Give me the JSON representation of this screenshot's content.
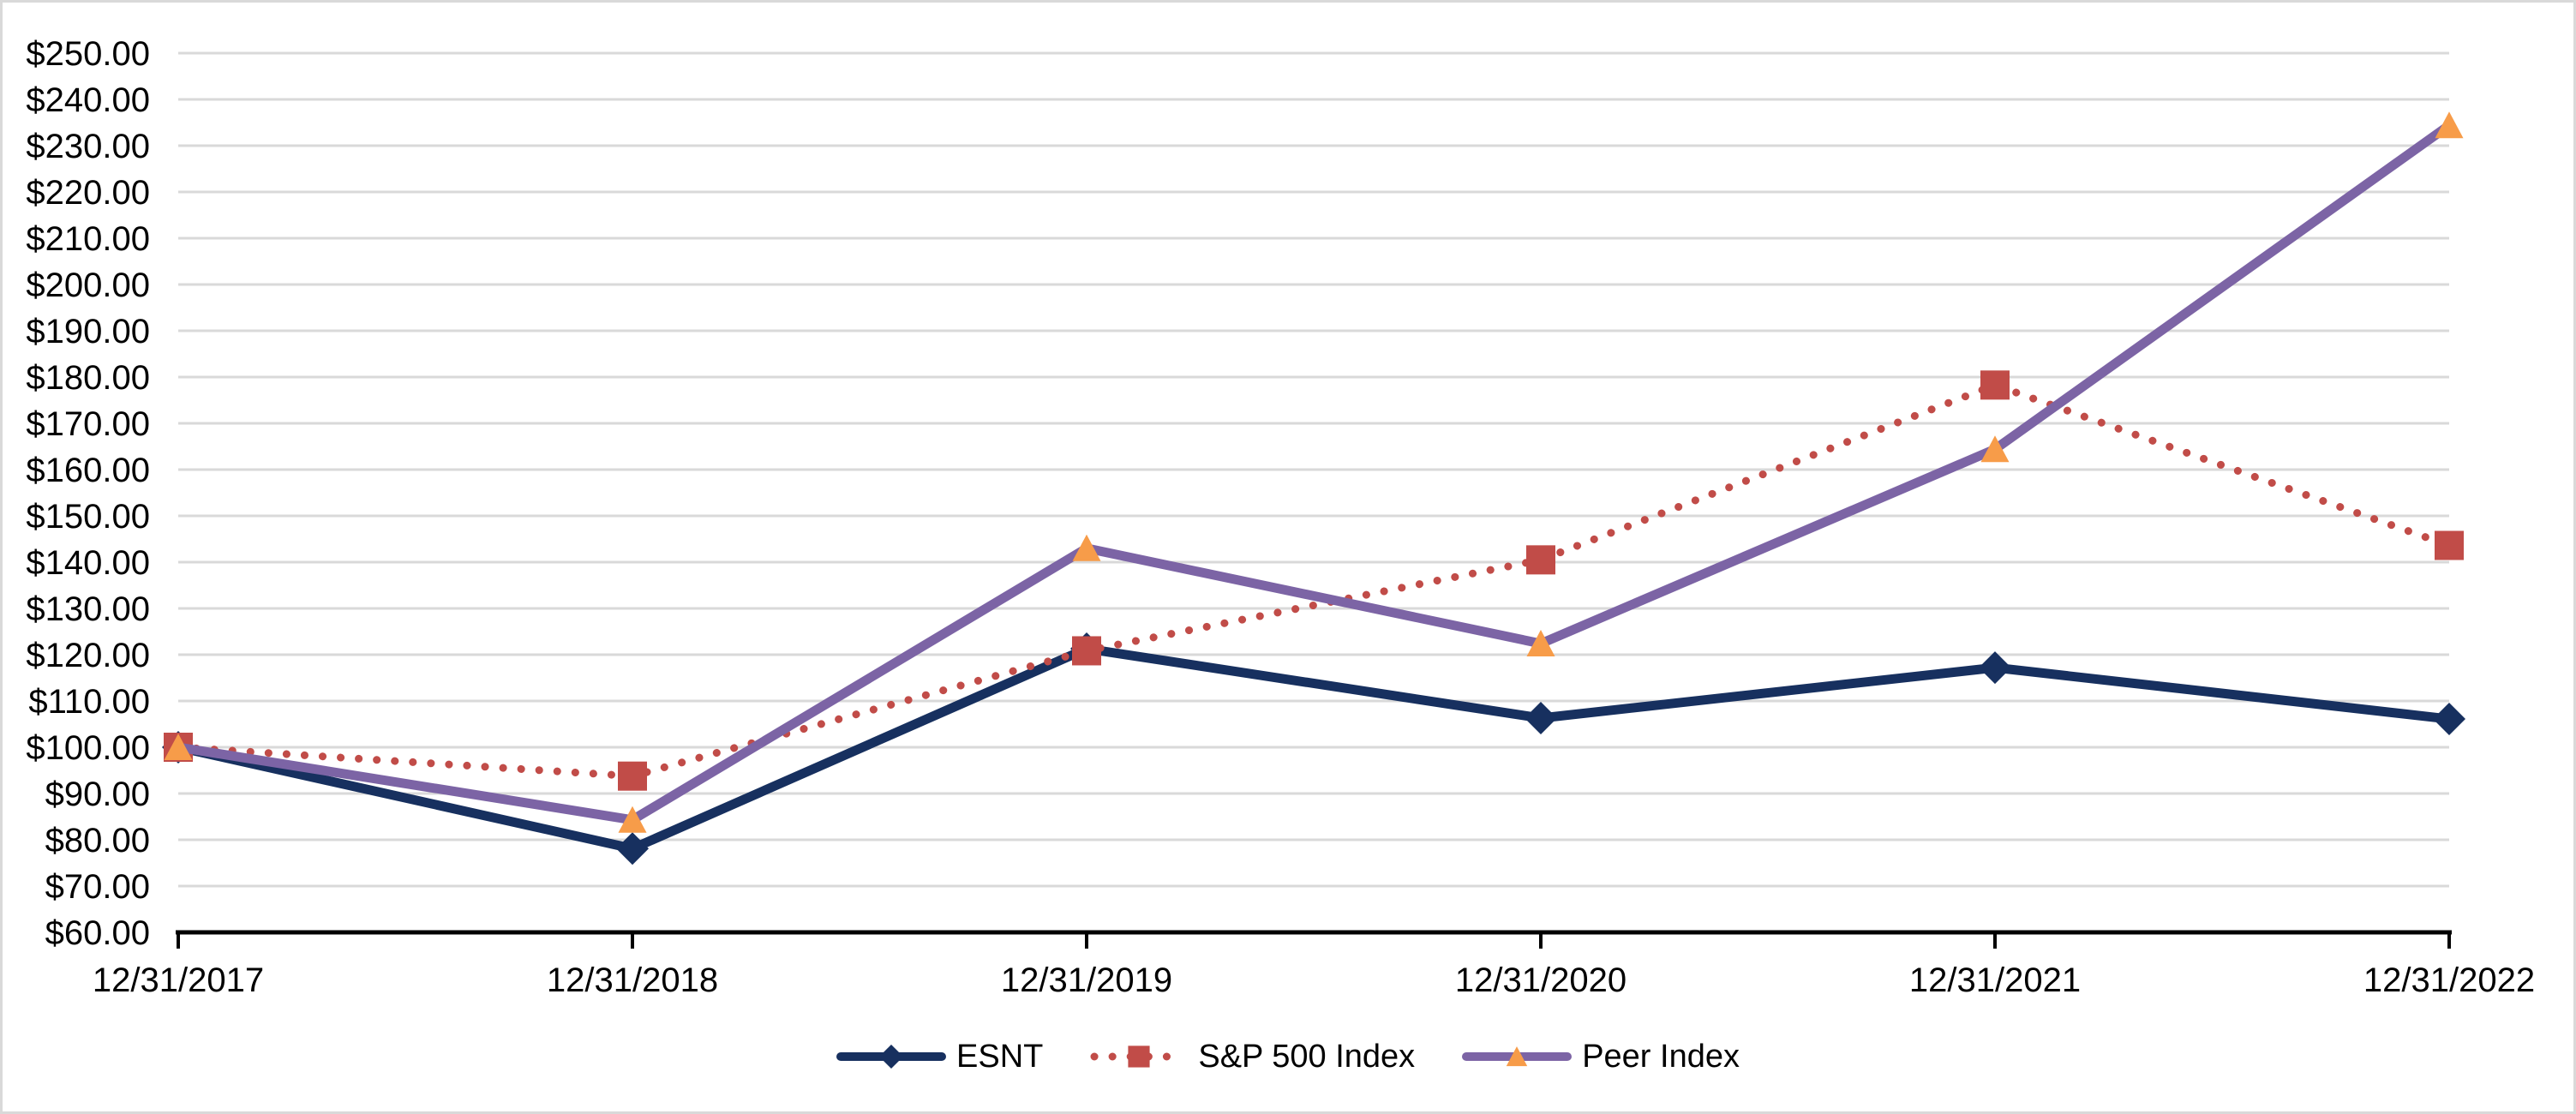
{
  "chart_data": {
    "type": "line",
    "title": "",
    "x_categories": [
      "12/31/2017",
      "12/31/2018",
      "12/31/2019",
      "12/31/2020",
      "12/31/2021",
      "12/31/2022"
    ],
    "series": [
      {
        "name": "ESNT",
        "line_style": "solid",
        "line_color": "#17305F",
        "marker": "diamond",
        "marker_color": "#17305F",
        "values": [
          100.0,
          78.1,
          121.3,
          106.3,
          117.2,
          106.1
        ]
      },
      {
        "name": "S&P 500 Index",
        "line_style": "dotted",
        "line_color": "#C14C48",
        "marker": "square",
        "marker_color": "#C14C48",
        "values": [
          100.0,
          93.76,
          120.84,
          140.49,
          178.27,
          143.61
        ]
      },
      {
        "name": "Peer Index",
        "line_style": "solid",
        "line_color": "#7C64A5",
        "marker": "triangle",
        "marker_color": "#F79C49",
        "values": [
          100.0,
          84.3,
          143.0,
          122.4,
          164.4,
          234.4
        ]
      }
    ],
    "y_axis": {
      "min": 60,
      "max": 250,
      "step": 10,
      "tick_prefix": "$",
      "tick_decimals": 2
    },
    "x_axis": {
      "tick_marks": true
    },
    "grid": true,
    "gridline_color": "#D9D9D9",
    "axis_color": "#000000",
    "legend_position": "bottom",
    "ylim": [
      60,
      250
    ]
  }
}
